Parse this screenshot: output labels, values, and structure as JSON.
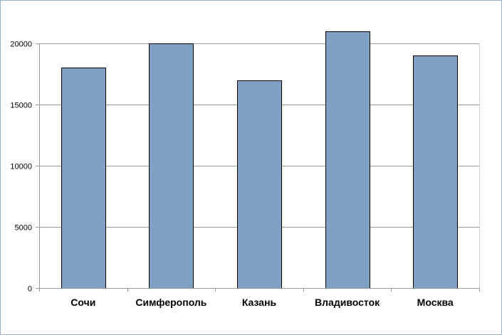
{
  "chart_data": {
    "type": "bar",
    "title": "",
    "xlabel": "",
    "ylabel": "",
    "categories": [
      "Сочи",
      "Симферополь",
      "Казань",
      "Владивосток",
      "Москва"
    ],
    "values": [
      18000,
      20000,
      17000,
      21000,
      19000
    ],
    "ylim": [
      0,
      20000
    ],
    "yticks": [
      0,
      5000,
      10000,
      15000,
      20000
    ],
    "grid": true,
    "legend": "none",
    "colors": {
      "bar_fill": "#7fa0c3",
      "bar_stroke": "#000000",
      "gridline": "#999999",
      "axis": "#999999",
      "frame": "#9ab0c8"
    }
  }
}
